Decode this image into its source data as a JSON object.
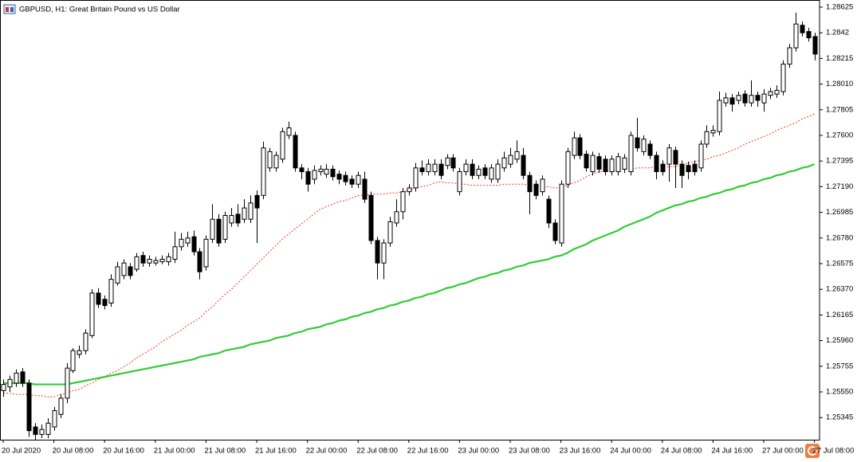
{
  "chart_data": {
    "type": "candlestick",
    "title": "GBPUSD, H1:  Great Britain Pound vs US Dollar",
    "categories": [
      "20 Jul 2020",
      null,
      null,
      null,
      null,
      null,
      null,
      null,
      "20 Jul 08:00",
      null,
      null,
      null,
      null,
      null,
      null,
      null,
      "20 Jul 16:00",
      null,
      null,
      null,
      null,
      null,
      null,
      null,
      "21 Jul 00:00",
      null,
      null,
      null,
      null,
      null,
      null,
      null,
      "21 Jul 08:00",
      null,
      null,
      null,
      null,
      null,
      null,
      null,
      "21 Jul 16:00",
      null,
      null,
      null,
      null,
      null,
      null,
      null,
      "22 Jul 00:00",
      null,
      null,
      null,
      null,
      null,
      null,
      null,
      "22 Jul 08:00",
      null,
      null,
      null,
      null,
      null,
      null,
      null,
      "22 Jul 16:00",
      null,
      null,
      null,
      null,
      null,
      null,
      null,
      "23 Jul 00:00",
      null,
      null,
      null,
      null,
      null,
      null,
      null,
      "23 Jul 08:00",
      null,
      null,
      null,
      null,
      null,
      null,
      null,
      "23 Jul 16:00",
      null,
      null,
      null,
      null,
      null,
      null,
      null,
      "24 Jul 00:00",
      null,
      null,
      null,
      null,
      null,
      null,
      null,
      "24 Jul 08:00",
      null,
      null,
      null,
      null,
      null,
      null,
      null,
      "24 Jul 16:00",
      null,
      null,
      null,
      null,
      null,
      null,
      null,
      "27 Jul 00:00",
      null,
      null,
      null,
      null,
      null,
      null,
      null,
      "27 Jul 08:00"
    ],
    "open": [
      1.2556,
      1.2559,
      1.2562,
      1.2571,
      1.2562,
      1.2527,
      1.2521,
      1.2521,
      1.2527,
      1.2537,
      1.255,
      1.2572,
      1.2585,
      1.2588,
      1.26,
      1.2634,
      1.2629,
      1.2626,
      1.2642,
      1.2648,
      1.2655,
      1.2653,
      1.2664,
      1.2658,
      1.2658,
      1.2659,
      1.2659,
      1.2661,
      1.2671,
      1.2674,
      1.2679,
      1.2667,
      1.2655,
      1.2677,
      1.2693,
      1.2677,
      1.269,
      1.2697,
      1.2693,
      1.2693,
      1.2712,
      1.2712,
      1.2734,
      1.2734,
      1.2741,
      1.276,
      1.276,
      1.2734,
      1.2731,
      1.2725,
      1.2731,
      1.2729,
      1.2733,
      1.2729,
      1.2728,
      1.2725,
      1.2721,
      1.2725,
      1.2712,
      1.2676,
      1.2658,
      1.2674,
      1.269,
      1.2699,
      1.2715,
      1.2718,
      1.2734,
      1.2731,
      1.2731,
      1.2737,
      1.2736,
      1.2742,
      1.2715,
      1.2731,
      1.2737,
      1.2728,
      1.2734,
      1.2725,
      1.2725,
      1.2734,
      1.2737,
      1.2741,
      1.2744,
      1.2728,
      1.2721,
      1.2715,
      1.2709,
      1.269,
      1.2674,
      1.2721,
      1.2744,
      1.2758,
      1.2745,
      1.2731,
      1.2743,
      1.2741,
      1.2731,
      1.2731,
      1.2733,
      1.2731,
      1.2758,
      1.2747,
      1.2753,
      1.2744,
      1.2737,
      1.2737,
      1.2748,
      1.2737,
      1.2736,
      1.2737,
      1.2734,
      1.2753,
      1.2762,
      1.2763,
      1.2786,
      1.279,
      1.2788,
      1.2793,
      1.2786,
      1.2792,
      1.2786,
      1.2792,
      1.2793,
      1.2795,
      1.2817,
      1.283,
      1.2848,
      1.2843,
      1.2839
    ],
    "high": [
      1.2565,
      1.2568,
      1.2573,
      1.2574,
      1.2565,
      1.253,
      1.2529,
      1.2534,
      1.2543,
      1.2553,
      1.2578,
      1.259,
      1.2592,
      1.2605,
      1.2637,
      1.2638,
      1.2632,
      1.2649,
      1.2659,
      1.2661,
      1.2658,
      1.2666,
      1.2667,
      1.2664,
      1.2663,
      1.2664,
      1.2666,
      1.2683,
      1.2682,
      1.2683,
      1.2684,
      1.267,
      1.268,
      1.2705,
      1.2697,
      1.2699,
      1.2702,
      1.2705,
      1.2709,
      1.2712,
      1.2716,
      1.2755,
      1.275,
      1.2747,
      1.2766,
      1.2771,
      1.2763,
      1.2737,
      1.2734,
      1.2736,
      1.2736,
      1.2737,
      1.2736,
      1.2732,
      1.2731,
      1.2728,
      1.2731,
      1.2731,
      1.2715,
      1.2679,
      1.2677,
      1.2695,
      1.2709,
      1.2718,
      1.2721,
      1.2738,
      1.274,
      1.2741,
      1.2741,
      1.2741,
      1.2745,
      1.2745,
      1.2734,
      1.2741,
      1.2741,
      1.2736,
      1.2737,
      1.2737,
      1.2741,
      1.2747,
      1.275,
      1.2756,
      1.275,
      1.2731,
      1.2724,
      1.2728,
      1.2712,
      1.2693,
      1.2724,
      1.275,
      1.2763,
      1.2761,
      1.2748,
      1.2747,
      1.2746,
      1.2744,
      1.2744,
      1.2746,
      1.2745,
      1.2763,
      1.2774,
      1.276,
      1.2756,
      1.2747,
      1.274,
      1.2753,
      1.2751,
      1.274,
      1.2739,
      1.274,
      1.2756,
      1.2768,
      1.2768,
      1.2795,
      1.2794,
      1.2793,
      1.2795,
      1.2796,
      1.2804,
      1.2795,
      1.2797,
      1.2798,
      1.28,
      1.282,
      1.2833,
      1.2858,
      1.2851,
      1.2846,
      1.2842
    ],
    "low": [
      1.2551,
      1.2555,
      1.2559,
      1.2559,
      1.2519,
      1.2516,
      1.2518,
      1.2518,
      1.2524,
      1.2534,
      1.2546,
      1.257,
      1.2582,
      1.2585,
      1.2598,
      1.2622,
      1.2621,
      1.2623,
      1.264,
      1.2645,
      1.2645,
      1.2651,
      1.2655,
      1.2655,
      1.2656,
      1.2657,
      1.2656,
      1.2658,
      1.2668,
      1.2671,
      1.2664,
      1.2645,
      1.2652,
      1.2674,
      1.2671,
      1.2674,
      1.2687,
      1.2687,
      1.269,
      1.269,
      1.2674,
      1.2709,
      1.2731,
      1.2731,
      1.2738,
      1.2757,
      1.2731,
      1.2725,
      1.2715,
      1.2721,
      1.2728,
      1.2726,
      1.2724,
      1.2721,
      1.272,
      1.2718,
      1.2718,
      1.2706,
      1.2673,
      1.2645,
      1.2645,
      1.2671,
      1.2687,
      1.2693,
      1.2712,
      1.2715,
      1.2728,
      1.2728,
      1.2728,
      1.2725,
      1.2733,
      1.2731,
      1.2712,
      1.2728,
      1.2725,
      1.2725,
      1.2725,
      1.2722,
      1.2722,
      1.2731,
      1.2734,
      1.2738,
      1.2725,
      1.2697,
      1.2709,
      1.2712,
      1.2686,
      1.2673,
      1.2671,
      1.2718,
      1.2741,
      1.2741,
      1.2731,
      1.2728,
      1.273,
      1.2728,
      1.2728,
      1.2728,
      1.273,
      1.2728,
      1.2747,
      1.2744,
      1.2741,
      1.2725,
      1.2728,
      1.2723,
      1.2718,
      1.2718,
      1.2725,
      1.2728,
      1.2731,
      1.275,
      1.2759,
      1.276,
      1.2783,
      1.2779,
      1.2785,
      1.2783,
      1.2783,
      1.2783,
      1.2779,
      1.2789,
      1.279,
      1.2792,
      1.2814,
      1.2827,
      1.2839,
      1.2835,
      1.282
    ],
    "close": [
      1.2561,
      1.2565,
      1.257,
      1.2562,
      1.2524,
      1.2521,
      1.2525,
      1.253,
      1.254,
      1.255,
      1.2574,
      1.2588,
      1.2588,
      1.2602,
      1.2634,
      1.2625,
      1.2624,
      1.2645,
      1.2655,
      1.2658,
      1.2648,
      1.2663,
      1.2658,
      1.2661,
      1.266,
      1.2661,
      1.2663,
      1.2671,
      1.2677,
      1.2678,
      1.2667,
      1.2651,
      1.2677,
      1.2693,
      1.2674,
      1.2696,
      1.2696,
      1.269,
      1.2702,
      1.2706,
      1.2702,
      1.275,
      1.2747,
      1.2744,
      1.2763,
      1.2766,
      1.2734,
      1.2731,
      1.2721,
      1.2732,
      1.2733,
      1.2733,
      1.2727,
      1.2725,
      1.2723,
      1.2721,
      1.2728,
      1.2709,
      1.2676,
      1.2658,
      1.2674,
      1.2691,
      1.2699,
      1.2715,
      1.2718,
      1.2734,
      1.2731,
      1.2737,
      1.2737,
      1.2728,
      1.2742,
      1.2734,
      1.2731,
      1.2737,
      1.2728,
      1.2733,
      1.2728,
      1.2734,
      1.2737,
      1.2742,
      1.2744,
      1.2747,
      1.2728,
      1.2715,
      1.2712,
      1.2725,
      1.269,
      1.2676,
      1.2721,
      1.2747,
      1.2758,
      1.2744,
      1.2734,
      1.2744,
      1.2733,
      1.2731,
      1.2741,
      1.2743,
      1.2742,
      1.276,
      1.275,
      1.2757,
      1.2744,
      1.2731,
      1.2731,
      1.275,
      1.2737,
      1.2728,
      1.2731,
      1.2731,
      1.2753,
      1.2763,
      1.2764,
      1.2788,
      1.279,
      1.2785,
      1.2792,
      1.2786,
      1.2792,
      1.2788,
      1.2793,
      1.2795,
      1.2796,
      1.2817,
      1.283,
      1.2849,
      1.2842,
      1.2838,
      1.2825
    ],
    "up_color": "#ffffff",
    "down_color": "#000000",
    "lines": [
      {
        "color": "#ff3b1f",
        "style": "dotted",
        "values": [
          1.2554,
          1.2554,
          1.2553,
          1.2553,
          1.2553,
          1.2552,
          1.2552,
          1.2551,
          1.2551,
          1.2553,
          1.2554,
          1.2556,
          1.2557,
          1.256,
          1.2562,
          1.2565,
          1.2567,
          1.257,
          1.2572,
          1.2575,
          1.2578,
          1.2582,
          1.2585,
          1.2588,
          1.2591,
          1.2595,
          1.2598,
          1.2601,
          1.2604,
          1.2608,
          1.2611,
          1.2614,
          1.2619,
          1.2623,
          1.2628,
          1.2633,
          1.2637,
          1.2642,
          1.2647,
          1.2652,
          1.2657,
          1.2662,
          1.2667,
          1.2672,
          1.2677,
          1.2681,
          1.2685,
          1.2689,
          1.2693,
          1.2697,
          1.2701,
          1.2703,
          1.2705,
          1.2707,
          1.2708,
          1.271,
          1.2712,
          1.2712,
          1.2713,
          1.2713,
          1.2713,
          1.2714,
          1.2714,
          1.2715,
          1.2716,
          1.2718,
          1.2719,
          1.272,
          1.2722,
          1.2723,
          1.2722,
          1.2722,
          1.2721,
          1.2721,
          1.272,
          1.272,
          1.272,
          1.272,
          1.272,
          1.2721,
          1.2721,
          1.2721,
          1.2721,
          1.272,
          1.272,
          1.2719,
          1.2719,
          1.2718,
          1.2718,
          1.272,
          1.2722,
          1.2724,
          1.2727,
          1.2729,
          1.2731,
          1.2731,
          1.2732,
          1.2732,
          1.2733,
          1.2733,
          1.2734,
          1.2734,
          1.2734,
          1.2735,
          1.2735,
          1.2735,
          1.2735,
          1.2736,
          1.2738,
          1.2739,
          1.274,
          1.2741,
          1.2743,
          1.2744,
          1.2746,
          1.2748,
          1.275,
          1.2753,
          1.2755,
          1.2757,
          1.2759,
          1.2761,
          1.2764,
          1.2766,
          1.2768,
          1.277,
          1.2773,
          1.2775,
          1.2777
        ]
      },
      {
        "color": "#32cd32",
        "style": "solid",
        "values": [
          1.2562,
          1.2562,
          1.2562,
          1.2562,
          1.2562,
          1.2561,
          1.2561,
          1.2561,
          1.2561,
          1.2561,
          1.2561,
          1.2562,
          1.2563,
          1.2564,
          1.2565,
          1.2566,
          1.2567,
          1.2568,
          1.2569,
          1.257,
          1.2571,
          1.2572,
          1.2573,
          1.2574,
          1.2575,
          1.2576,
          1.2577,
          1.2578,
          1.2579,
          1.258,
          1.2581,
          1.2583,
          1.2584,
          1.2585,
          1.2586,
          1.2588,
          1.2589,
          1.259,
          1.2591,
          1.2593,
          1.2594,
          1.2595,
          1.2596,
          1.2598,
          1.2599,
          1.26,
          1.2602,
          1.2603,
          1.2605,
          1.2606,
          1.2607,
          1.2609,
          1.261,
          1.2612,
          1.2613,
          1.2615,
          1.2616,
          1.2618,
          1.2619,
          1.2621,
          1.2622,
          1.2624,
          1.2625,
          1.2627,
          1.2628,
          1.263,
          1.2631,
          1.2633,
          1.2634,
          1.2636,
          1.2638,
          1.2639,
          1.2641,
          1.2642,
          1.2644,
          1.2646,
          1.2647,
          1.2649,
          1.265,
          1.2652,
          1.2653,
          1.2655,
          1.2656,
          1.2658,
          1.2659,
          1.266,
          1.2661,
          1.2663,
          1.2664,
          1.2666,
          1.2669,
          1.2671,
          1.2673,
          1.2676,
          1.2678,
          1.268,
          1.2682,
          1.2684,
          1.2687,
          1.2689,
          1.2691,
          1.2693,
          1.2695,
          1.2698,
          1.27,
          1.2702,
          1.2704,
          1.2705,
          1.2707,
          1.2708,
          1.271,
          1.2711,
          1.2713,
          1.2714,
          1.2716,
          1.2717,
          1.2719,
          1.272,
          1.2722,
          1.2723,
          1.2725,
          1.2726,
          1.2728,
          1.2729,
          1.2731,
          1.2732,
          1.2734,
          1.2735,
          1.2737
        ]
      }
    ],
    "ylim": [
      1.25168,
      1.28682
    ],
    "yticks": [
      1.25345,
      {
        "value": 1.2555,
        "label": "1.25550"
      },
      1.25755,
      {
        "value": 1.2596,
        "label": "1.25960"
      },
      1.26165,
      {
        "value": 1.2637,
        "label": "1.26370"
      },
      1.26575,
      {
        "value": 1.2678,
        "label": "1.26780"
      },
      1.26985,
      {
        "value": 1.2719,
        "label": "1.27190"
      },
      1.27395,
      {
        "value": 1.276,
        "label": "1.27600"
      },
      1.27805,
      {
        "value": 1.2801,
        "label": "1.28010"
      },
      1.28215,
      1.2842,
      1.28625
    ],
    "grid": false
  }
}
